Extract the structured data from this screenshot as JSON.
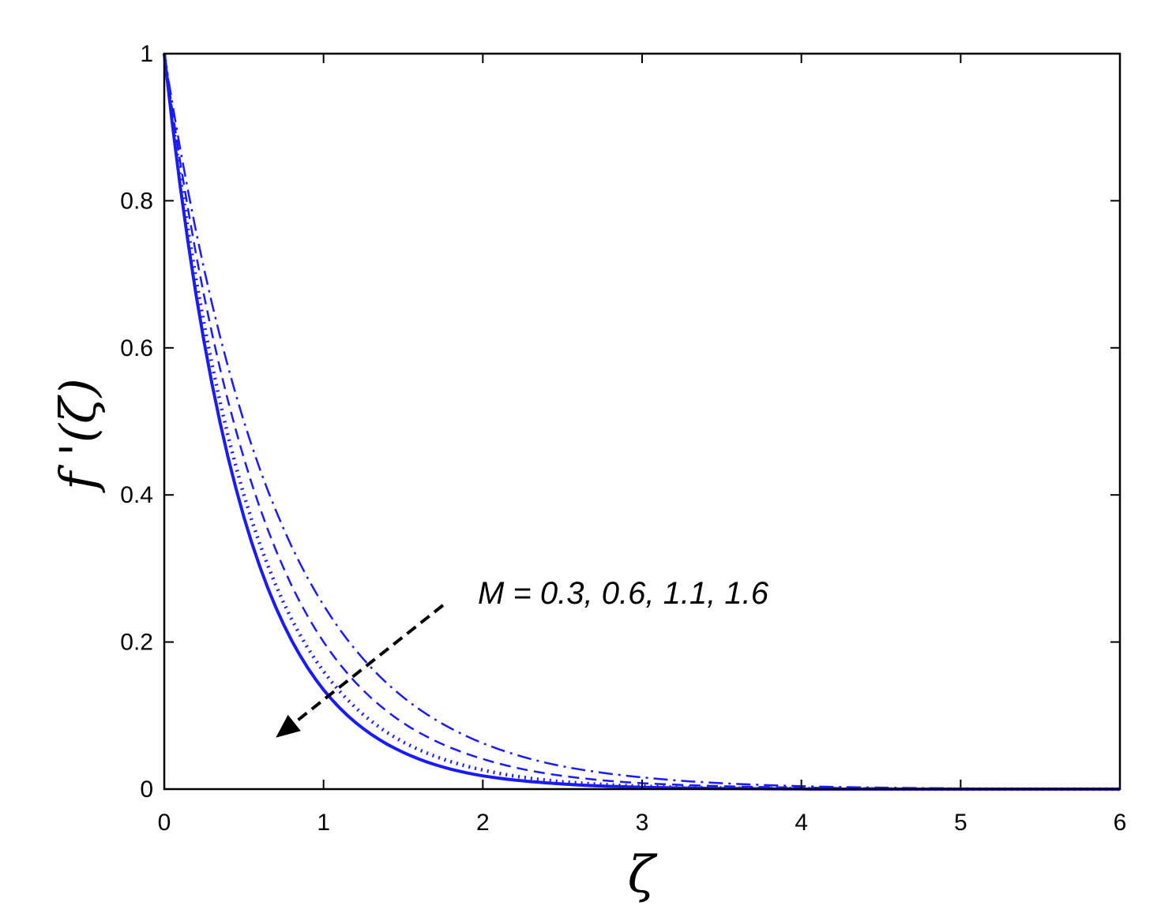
{
  "chart_data": {
    "type": "line",
    "title": "",
    "xlabel": "ζ",
    "ylabel": "f '(ζ)",
    "xlim": [
      0,
      6
    ],
    "ylim": [
      0,
      1
    ],
    "xticks": [
      0,
      1,
      2,
      3,
      4,
      5,
      6
    ],
    "yticks": [
      0,
      0.2,
      0.4,
      0.6,
      0.8,
      1
    ],
    "xtick_labels": [
      "0",
      "1",
      "2",
      "3",
      "4",
      "5",
      "6"
    ],
    "ytick_labels": [
      "0",
      "0.2",
      "0.4",
      "0.6",
      "0.8",
      "1"
    ],
    "grid": false,
    "legend": "none",
    "line_color": "#1a1aff",
    "annotation": {
      "text": "M = 0.3, 0.6, 1.1, 1.6",
      "arrow_from": [
        1.75,
        0.25
      ],
      "arrow_to": [
        0.7,
        0.07
      ]
    },
    "x": [
      0,
      0.5,
      1,
      1.5,
      2,
      2.5,
      3,
      3.5,
      4,
      4.5,
      5,
      5.5,
      6
    ],
    "series": [
      {
        "style": "dash-dot",
        "values": [
          1,
          0.5,
          0.25,
          0.125,
          0.0625,
          0.031,
          0.016,
          0.008,
          0.004,
          0.002,
          0.001,
          0.0005,
          0
        ]
      },
      {
        "style": "dashed",
        "values": [
          1,
          0.45,
          0.2,
          0.09,
          0.041,
          0.018,
          0.008,
          0.004,
          0.002,
          0.001,
          0.0004,
          0.0002,
          0
        ]
      },
      {
        "style": "dotted",
        "values": [
          1,
          0.4,
          0.16,
          0.064,
          0.026,
          0.01,
          0.004,
          0.0017,
          0.0007,
          0.0003,
          0.0001,
          0,
          0
        ]
      },
      {
        "style": "solid",
        "values": [
          1,
          0.37,
          0.135,
          0.05,
          0.018,
          0.007,
          0.0025,
          0.0009,
          0.0003,
          0.0001,
          0,
          0,
          0
        ]
      }
    ]
  }
}
